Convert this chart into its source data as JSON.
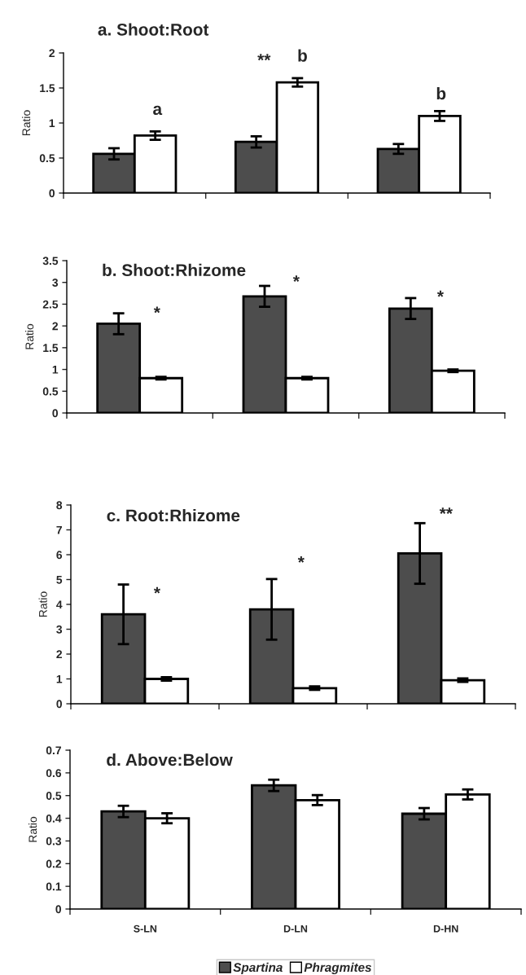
{
  "chart_data": [
    {
      "type": "bar",
      "title": "a. Shoot:Root",
      "ylabel": "Ratio",
      "categories": [
        null,
        null,
        null
      ],
      "ylim": [
        0,
        2
      ],
      "yticks": [
        0,
        0.5,
        1,
        1.5,
        2
      ],
      "tick_labels": "y",
      "grid": false,
      "series": [
        {
          "color": "#4d4d4d",
          "values": [
            0.56,
            0.73,
            0.63
          ],
          "errors": [
            0.08,
            0.08,
            0.07
          ]
        },
        {
          "color": "#ffffff",
          "values": [
            0.82,
            1.58,
            1.1
          ],
          "errors": [
            0.06,
            0.06,
            0.07
          ]
        }
      ],
      "annotations": [
        "a",
        "**",
        "b",
        "b"
      ]
    },
    {
      "type": "bar",
      "title": "b. Shoot:Rhizome",
      "ylabel": "Ratio",
      "categories": [
        null,
        null,
        null
      ],
      "ylim": [
        0,
        3.5
      ],
      "yticks": [
        0,
        0.5,
        1,
        1.5,
        2,
        2.5,
        3,
        3.5
      ],
      "tick_labels": "y",
      "grid": false,
      "series": [
        {
          "color": "#4d4d4d",
          "values": [
            2.05,
            2.68,
            2.4
          ],
          "errors": [
            0.24,
            0.24,
            0.24
          ]
        },
        {
          "color": "#ffffff",
          "values": [
            0.8,
            0.8,
            0.97
          ],
          "errors": [
            0.03,
            0.03,
            0.03
          ]
        }
      ],
      "annotations": [
        "*",
        "*",
        "*"
      ]
    },
    {
      "type": "bar",
      "title": "c. Root:Rhizome",
      "ylabel": "Ratio",
      "categories": [
        null,
        null,
        null
      ],
      "ylim": [
        0,
        8
      ],
      "yticks": [
        0,
        1,
        2,
        3,
        4,
        5,
        6,
        7,
        8
      ],
      "tick_labels": "y",
      "grid": false,
      "series": [
        {
          "color": "#4d4d4d",
          "values": [
            3.6,
            3.8,
            6.05
          ],
          "errors": [
            1.2,
            1.22,
            1.22
          ]
        },
        {
          "color": "#ffffff",
          "values": [
            1.0,
            0.63,
            0.95
          ],
          "errors": [
            0.07,
            0.07,
            0.07
          ]
        }
      ],
      "annotations": [
        "*",
        "*",
        "**"
      ]
    },
    {
      "type": "bar",
      "title": "d. Above:Below",
      "ylabel": "Ratio",
      "categories": [
        "S-LN",
        "D-LN",
        "D-HN"
      ],
      "ylim": [
        0,
        0.7
      ],
      "yticks": [
        0,
        0.1,
        0.2,
        0.3,
        0.4,
        0.5,
        0.6,
        0.7
      ],
      "grid": false,
      "legend": "bottom",
      "series": [
        {
          "name": "Spartina",
          "color": "#4d4d4d",
          "values": [
            0.43,
            0.545,
            0.42
          ],
          "errors": [
            0.025,
            0.025,
            0.025
          ]
        },
        {
          "name": "Phragmites",
          "color": "#ffffff",
          "values": [
            0.4,
            0.48,
            0.505
          ],
          "errors": [
            0.022,
            0.022,
            0.022
          ]
        }
      ]
    }
  ]
}
